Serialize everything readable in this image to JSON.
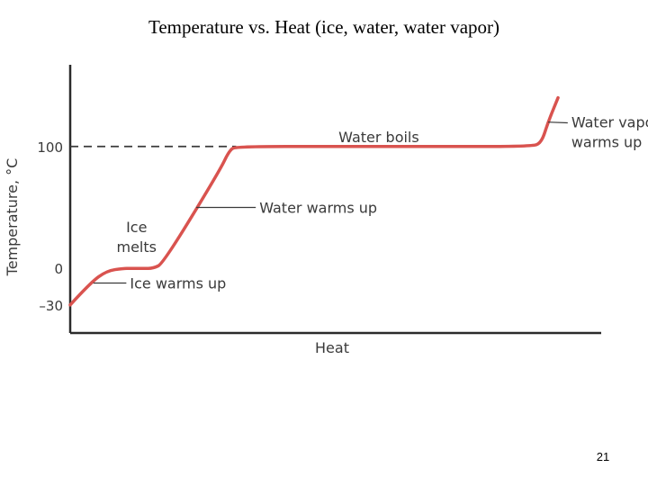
{
  "slide": {
    "title": "Temperature vs. Heat (ice, water, water vapor)",
    "page_number": "21"
  },
  "chart_data": {
    "type": "line",
    "title": "",
    "xlabel": "Heat",
    "ylabel": "Temperature, °C",
    "y_ticks": [
      {
        "value": 100,
        "label": "100"
      },
      {
        "value": 0,
        "label": "0"
      },
      {
        "value": -30,
        "label": "–30"
      }
    ],
    "ylim": [
      -53,
      167
    ],
    "x_axis_numeric_labels": false,
    "reference_lines": [
      {
        "y": 100,
        "style": "dashed"
      }
    ],
    "series": [
      {
        "color": "#d9534f",
        "points": [
          {
            "heat": 0,
            "temp": -30
          },
          {
            "heat": 3,
            "temp": -12
          },
          {
            "heat": 5.5,
            "temp": -2
          },
          {
            "heat": 8,
            "temp": 0
          },
          {
            "heat": 9,
            "temp": 0
          },
          {
            "heat": 11,
            "temp": 0
          },
          {
            "heat": 12.5,
            "temp": 0
          },
          {
            "heat": 14,
            "temp": 4
          },
          {
            "heat": 22.5,
            "temp": 80
          },
          {
            "heat": 24,
            "temp": 97
          },
          {
            "heat": 25,
            "temp": 100
          },
          {
            "heat": 40,
            "temp": 100
          },
          {
            "heat": 55,
            "temp": 100
          },
          {
            "heat": 69.5,
            "temp": 100
          },
          {
            "heat": 71,
            "temp": 103
          },
          {
            "heat": 72,
            "temp": 120
          },
          {
            "heat": 73.5,
            "temp": 140
          }
        ]
      }
    ],
    "annotations": [
      {
        "id": "ice-warms-up",
        "lines": [
          "Ice warms up"
        ],
        "anchor": "start",
        "pointer": true,
        "at": {
          "heat": 3.5,
          "temp": -12
        },
        "text_pos": {
          "heat": 9,
          "temp": -12
        }
      },
      {
        "id": "ice-melts",
        "lines": [
          "Ice",
          "melts"
        ],
        "anchor": "middle",
        "pointer": false,
        "text_pos": {
          "heat": 10,
          "temp": 26
        }
      },
      {
        "id": "water-warms-up",
        "lines": [
          "Water warms up"
        ],
        "anchor": "start",
        "pointer": true,
        "at": {
          "heat": 19,
          "temp": 50
        },
        "text_pos": {
          "heat": 28.5,
          "temp": 50
        }
      },
      {
        "id": "water-boils",
        "lines": [
          "Water boils"
        ],
        "anchor": "middle",
        "pointer": false,
        "text_pos": {
          "heat": 46.5,
          "temp": 108
        }
      },
      {
        "id": "water-vapor-warms-up",
        "lines": [
          "Water vapor",
          "warms up"
        ],
        "anchor": "start",
        "pointer": true,
        "at": {
          "heat": 72,
          "temp": 120
        },
        "text_pos": {
          "heat": 75.5,
          "temp": 112
        }
      }
    ]
  }
}
